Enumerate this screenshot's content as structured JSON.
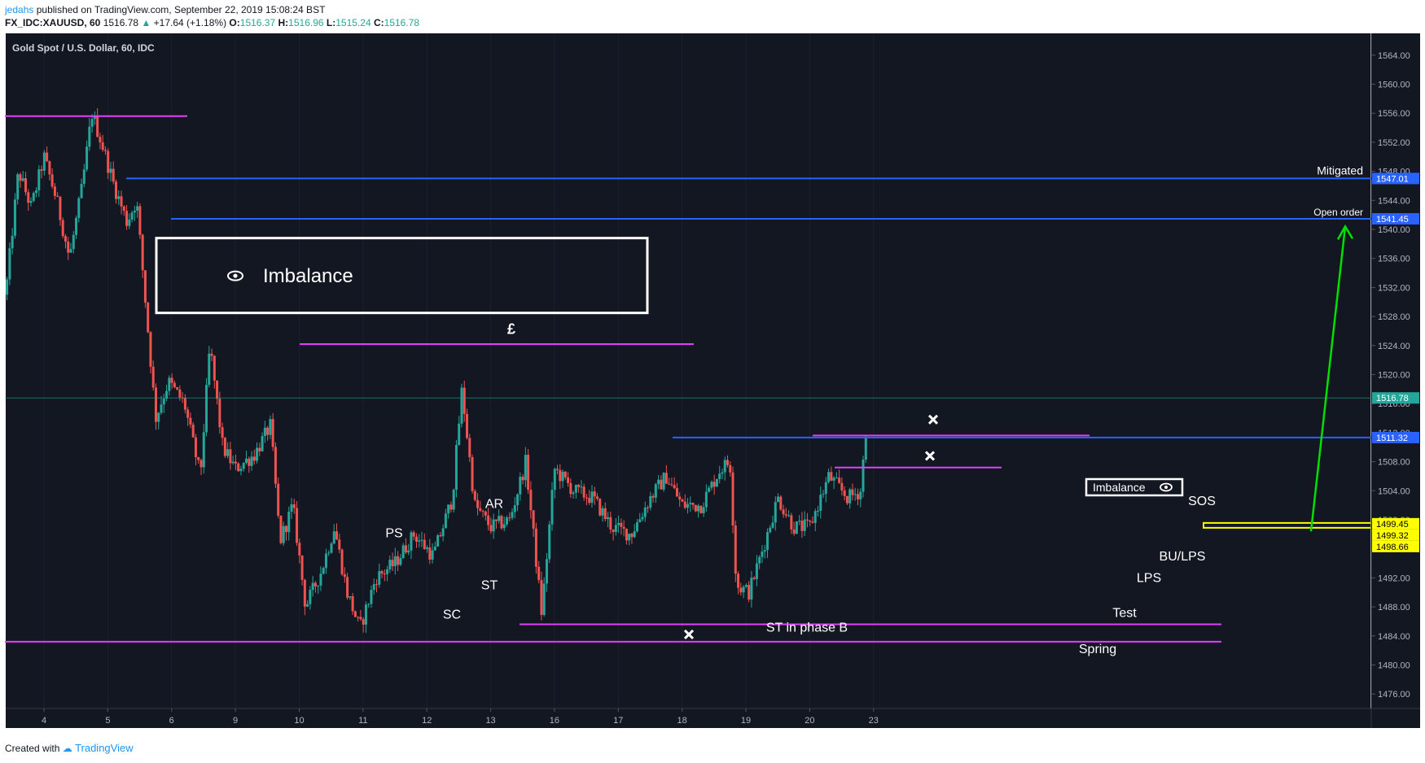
{
  "header": {
    "publisher": "jedahs",
    "published_text": "published on TradingView.com, September 22, 2019 15:08:24 BST",
    "symbol": "FX_IDC:XAUUSD, 60",
    "last": "1516.78",
    "change": "+17.64 (+1.18%)",
    "open_label": "O:",
    "open": "1516.37",
    "high_label": "H:",
    "high": "1516.96",
    "low_label": "L:",
    "low": "1515.24",
    "close_label": "C:",
    "close": "1516.78"
  },
  "footer": {
    "created_with": "Created with",
    "brand": "TradingView"
  },
  "chart_data": {
    "type": "candlestick",
    "title": "Gold Spot / U.S. Dollar, 60, IDC",
    "ylim": [
      1474,
      1567
    ],
    "xlim": [
      3.4,
      24.8
    ],
    "y_ticks": [
      1476,
      1480,
      1484,
      1488,
      1492,
      1496,
      1500,
      1504,
      1508,
      1512,
      1516,
      1520,
      1524,
      1528,
      1532,
      1536,
      1540,
      1544,
      1548,
      1552,
      1556,
      1560,
      1564
    ],
    "x_ticks": [
      {
        "x": 4,
        "label": "4"
      },
      {
        "x": 5,
        "label": "5"
      },
      {
        "x": 6,
        "label": "6"
      },
      {
        "x": 7,
        "label": "9"
      },
      {
        "x": 8,
        "label": "10"
      },
      {
        "x": 9,
        "label": "11"
      },
      {
        "x": 10,
        "label": "12"
      },
      {
        "x": 11,
        "label": "13"
      },
      {
        "x": 12,
        "label": "16"
      },
      {
        "x": 13,
        "label": "17"
      },
      {
        "x": 14,
        "label": "18"
      },
      {
        "x": 15,
        "label": "19"
      },
      {
        "x": 16,
        "label": "20"
      },
      {
        "x": 17,
        "label": "23"
      }
    ],
    "path": [
      [
        3.4,
        1531
      ],
      [
        3.6,
        1548
      ],
      [
        3.8,
        1543
      ],
      [
        4.0,
        1550
      ],
      [
        4.2,
        1544
      ],
      [
        4.4,
        1536
      ],
      [
        4.6,
        1546
      ],
      [
        4.75,
        1556
      ],
      [
        4.9,
        1552
      ],
      [
        5.1,
        1546
      ],
      [
        5.3,
        1541
      ],
      [
        5.45,
        1544
      ],
      [
        5.6,
        1529
      ],
      [
        5.75,
        1514
      ],
      [
        5.95,
        1519
      ],
      [
        6.2,
        1516
      ],
      [
        6.45,
        1506
      ],
      [
        6.6,
        1524
      ],
      [
        6.8,
        1510
      ],
      [
        7.0,
        1507
      ],
      [
        7.3,
        1509
      ],
      [
        7.55,
        1513
      ],
      [
        7.7,
        1497
      ],
      [
        7.9,
        1502
      ],
      [
        8.1,
        1488
      ],
      [
        8.35,
        1493
      ],
      [
        8.55,
        1499
      ],
      [
        8.75,
        1490
      ],
      [
        8.95,
        1485
      ],
      [
        9.2,
        1492
      ],
      [
        9.5,
        1494
      ],
      [
        9.8,
        1498
      ],
      [
        10.1,
        1495
      ],
      [
        10.4,
        1503
      ],
      [
        10.55,
        1518
      ],
      [
        10.75,
        1502
      ],
      [
        11.0,
        1499
      ],
      [
        11.3,
        1500
      ],
      [
        11.55,
        1508
      ],
      [
        11.8,
        1487
      ],
      [
        12.0,
        1507
      ],
      [
        12.3,
        1504
      ],
      [
        12.6,
        1503
      ],
      [
        12.9,
        1499
      ],
      [
        13.2,
        1498
      ],
      [
        13.5,
        1503
      ],
      [
        13.75,
        1506
      ],
      [
        14.0,
        1502
      ],
      [
        14.3,
        1502
      ],
      [
        14.6,
        1507
      ],
      [
        14.75,
        1508
      ],
      [
        14.85,
        1491
      ],
      [
        15.05,
        1490
      ],
      [
        15.3,
        1497
      ],
      [
        15.5,
        1503
      ],
      [
        15.75,
        1499
      ],
      [
        16.0,
        1499
      ],
      [
        16.3,
        1506
      ],
      [
        16.6,
        1503
      ],
      [
        16.8,
        1504
      ],
      [
        16.92,
        1516.78
      ]
    ],
    "price_labels": [
      {
        "value": 1547.01,
        "label": "1547.01",
        "color": "#2962ff"
      },
      {
        "value": 1541.45,
        "label": "1541.45",
        "color": "#2962ff"
      },
      {
        "value": 1516.78,
        "label": "1516.78",
        "color": "#26a69a"
      },
      {
        "value": 1511.32,
        "label": "1511.32",
        "color": "#2962ff"
      },
      {
        "value": 1499.45,
        "label": "1499.45",
        "color": "#ffff00"
      },
      {
        "value": 1499.32,
        "label": "1499.32",
        "color": "#ffff00"
      },
      {
        "value": 1498.66,
        "label": "1498.66",
        "color": "#ffff00"
      }
    ],
    "annotations": {
      "imbalance_big": "Imbalance",
      "pound": "£",
      "mitigated": "Mitigated",
      "open_order": "Open order",
      "imbalance_small": "Imbalance",
      "ps": "PS",
      "sc": "SC",
      "ar": "AR",
      "st": "ST",
      "st_phase_b": "ST in phase B",
      "spring": "Spring",
      "test": "Test",
      "lps": "LPS",
      "bu_lps": "BU/LPS",
      "sos": "SOS"
    }
  }
}
